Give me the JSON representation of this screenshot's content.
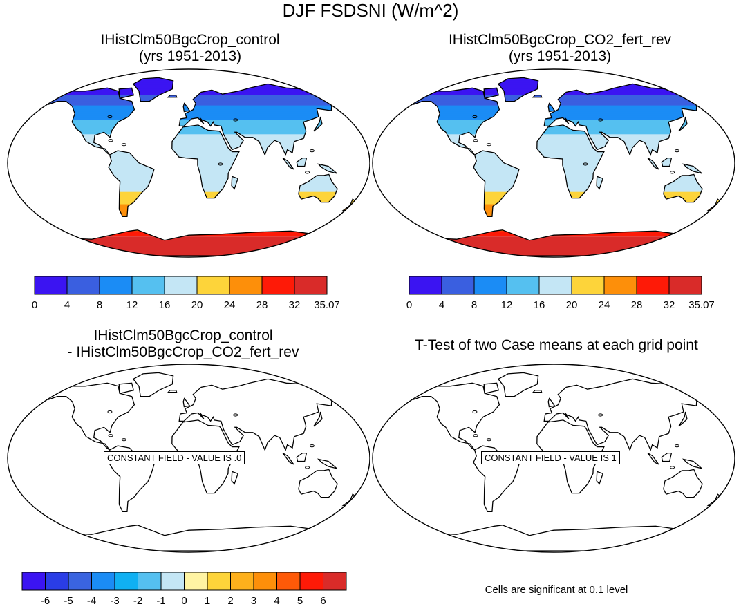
{
  "title": "DJF FSDSNI (W/m^2)",
  "panels": [
    {
      "title_line1": "IHistClm50BgcCrop_control",
      "title_line2": "(yrs 1951-2013)"
    },
    {
      "title_line1": "IHistClm50BgcCrop_CO2_fert_rev",
      "title_line2": "(yrs 1951-2013)"
    },
    {
      "title_line1": "IHistClm50BgcCrop_control",
      "title_line2": "- IHistClm50BgcCrop_CO2_fert_rev",
      "overlay": "CONSTANT FIELD - VALUE IS .0"
    },
    {
      "title_line1": "T-Test of two Case means at each grid point",
      "overlay": "CONSTANT FIELD - VALUE IS 1"
    }
  ],
  "colorbar_top": {
    "labels": [
      "0",
      "4",
      "8",
      "12",
      "16",
      "20",
      "24",
      "28",
      "32",
      "35.07"
    ],
    "colors": [
      "#3b14f2",
      "#3a5fe0",
      "#1b8cf5",
      "#55c0f0",
      "#c4e6f5",
      "#fdd43a",
      "#fd8f0a",
      "#fe1a07",
      "#d92b29"
    ]
  },
  "colorbar_bottom": {
    "labels": [
      "-6",
      "-5",
      "-4",
      "-3",
      "-2",
      "-1",
      "0",
      "1",
      "2",
      "3",
      "4",
      "5",
      "6"
    ],
    "colors": [
      "#3b14f2",
      "#2a3de6",
      "#3a64e0",
      "#1b8cf5",
      "#10b0f2",
      "#55c0f0",
      "#c4e6f5",
      "#fff4a3",
      "#fdd43a",
      "#fdb01c",
      "#fd8f0a",
      "#fe5a08",
      "#fe1a07",
      "#d92b29"
    ]
  },
  "footnote": "Cells are significant at 0.1 level"
}
